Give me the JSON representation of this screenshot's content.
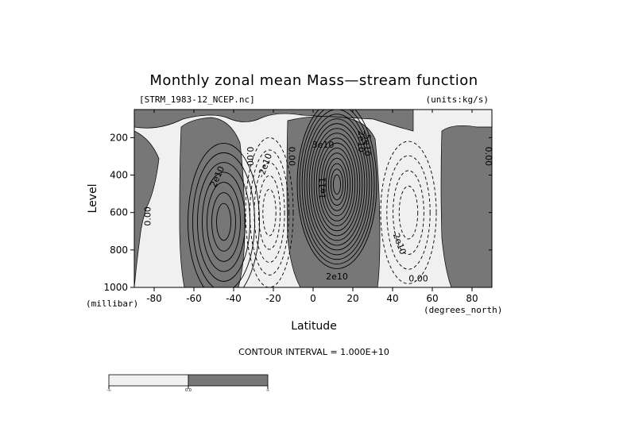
{
  "chart_data": {
    "type": "contour",
    "title": "Monthly zonal mean Mass—stream function",
    "file_label": "[STRM_1983-12_NCEP.nc]",
    "units_label": "(units:kg/s)",
    "xlabel": "Latitude",
    "x_unit_label": "(degrees_north)",
    "ylabel": "Level",
    "y_unit_label": "(millibar)",
    "xlim": [
      -90,
      90
    ],
    "ylim": [
      1000,
      50
    ],
    "x_ticks": [
      -80,
      -60,
      -40,
      -20,
      0,
      20,
      40,
      60,
      80
    ],
    "y_ticks": [
      200,
      400,
      600,
      800,
      1000
    ],
    "contour_interval_label": "CONTOUR INTERVAL = 1.000E+10",
    "shading": {
      "positive": "#777777",
      "negative": "#f0f0f0"
    },
    "colorbar": {
      "labels": [
        "-∞",
        "0.0",
        "∞"
      ],
      "colors": [
        "#f0f0f0",
        "#777777"
      ]
    },
    "cells": [
      {
        "name": "southern-positive-cell",
        "sign": "positive",
        "center": [
          -45,
          650
        ],
        "half_width": 18,
        "half_height": 420,
        "levels": 7
      },
      {
        "name": "southern-negative-cell",
        "sign": "negative",
        "center": [
          -22,
          600
        ],
        "half_width": 12,
        "half_height": 400,
        "levels": 5
      },
      {
        "name": "hadley-positive-cell",
        "sign": "positive",
        "center": [
          12,
          450
        ],
        "half_width": 20,
        "half_height": 450,
        "levels": 16
      },
      {
        "name": "northern-negative-cell",
        "sign": "negative",
        "center": [
          48,
          600
        ],
        "half_width": 14,
        "half_height": 380,
        "levels": 4
      }
    ],
    "contour_labels": [
      {
        "text": "0.00",
        "lat": -83,
        "p": 620,
        "rotate": -90
      },
      {
        "text": "2e10",
        "lat": -48,
        "p": 410,
        "rotate": -65
      },
      {
        "text": "0.00",
        "lat": -32,
        "p": 300,
        "rotate": 90
      },
      {
        "text": "-2e10",
        "lat": -24,
        "p": 350,
        "rotate": -70
      },
      {
        "text": "0.00",
        "lat": -11,
        "p": 300,
        "rotate": 90
      },
      {
        "text": "3e10",
        "lat": 5,
        "p": 240,
        "rotate": 0
      },
      {
        "text": "1e11",
        "lat": 5,
        "p": 470,
        "rotate": -90
      },
      {
        "text": "2e10",
        "lat": 24,
        "p": 220,
        "rotate": 90
      },
      {
        "text": "5e10",
        "lat": 27,
        "p": 240,
        "rotate": 90
      },
      {
        "text": "2e10",
        "lat": 12,
        "p": 945,
        "rotate": 0
      },
      {
        "text": "-2e10",
        "lat": 43,
        "p": 760,
        "rotate": 70
      },
      {
        "text": "0.00",
        "lat": 53,
        "p": 955,
        "rotate": 0
      },
      {
        "text": "0.00",
        "lat": 88,
        "p": 300,
        "rotate": 90
      }
    ]
  }
}
